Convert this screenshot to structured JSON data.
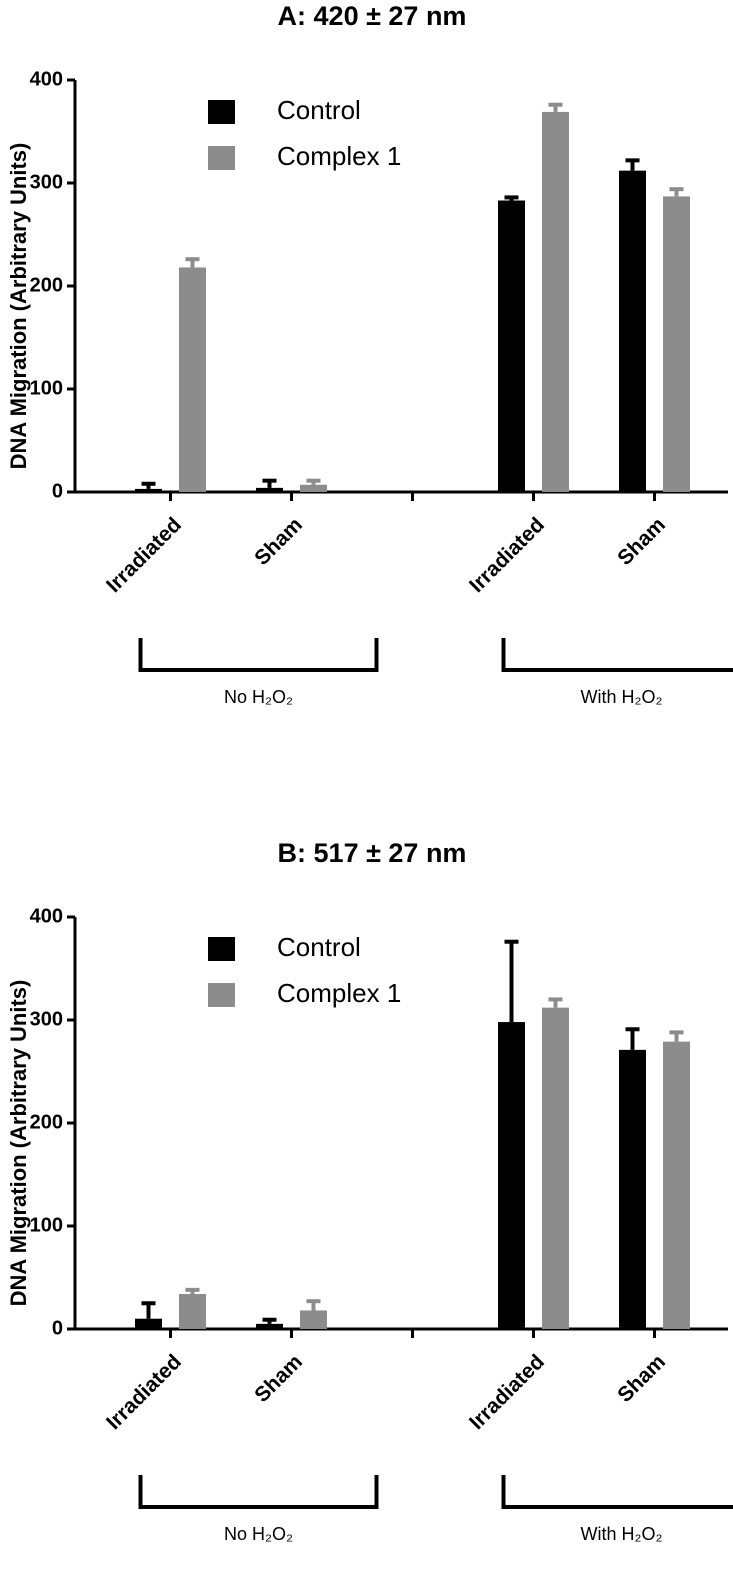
{
  "chart_data": [
    {
      "type": "bar",
      "title": "A: 420 ± 27 nm",
      "y_label": "DNA Migration (Arbitrary Units)",
      "categories": [
        "Irradiated",
        "Sham",
        null,
        "Irradiated",
        "Sham"
      ],
      "group_labels": [
        "No H₂O₂",
        "With H₂O₂"
      ],
      "series": [
        {
          "name": "Control",
          "color": "#000000",
          "values": [
            3,
            4,
            null,
            283,
            312
          ],
          "errors": [
            5,
            7,
            null,
            3,
            10
          ]
        },
        {
          "name": "Complex 1",
          "color": "#8c8c8c",
          "values": [
            218,
            7,
            null,
            369,
            287
          ],
          "errors": [
            8,
            4,
            null,
            7,
            7
          ]
        }
      ],
      "ylim": [
        0,
        400
      ],
      "yticks": [
        0,
        100,
        200,
        300,
        400
      ],
      "legend": "upper left"
    },
    {
      "type": "bar",
      "title": "B: 517 ± 27 nm",
      "y_label": "DNA Migration (Arbitrary Units)",
      "categories": [
        "Irradiated",
        "Sham",
        null,
        "Irradiated",
        "Sham"
      ],
      "group_labels": [
        "No H₂O₂",
        "With H₂O₂"
      ],
      "series": [
        {
          "name": "Control",
          "color": "#000000",
          "values": [
            10,
            5,
            null,
            298,
            271
          ],
          "errors": [
            15,
            4,
            null,
            78,
            20
          ]
        },
        {
          "name": "Complex 1",
          "color": "#8c8c8c",
          "values": [
            34,
            18,
            null,
            312,
            279
          ],
          "errors": [
            4,
            9,
            null,
            8,
            9
          ]
        }
      ],
      "ylim": [
        0,
        400
      ],
      "yticks": [
        0,
        100,
        200,
        300,
        400
      ],
      "legend": "upper left"
    }
  ]
}
